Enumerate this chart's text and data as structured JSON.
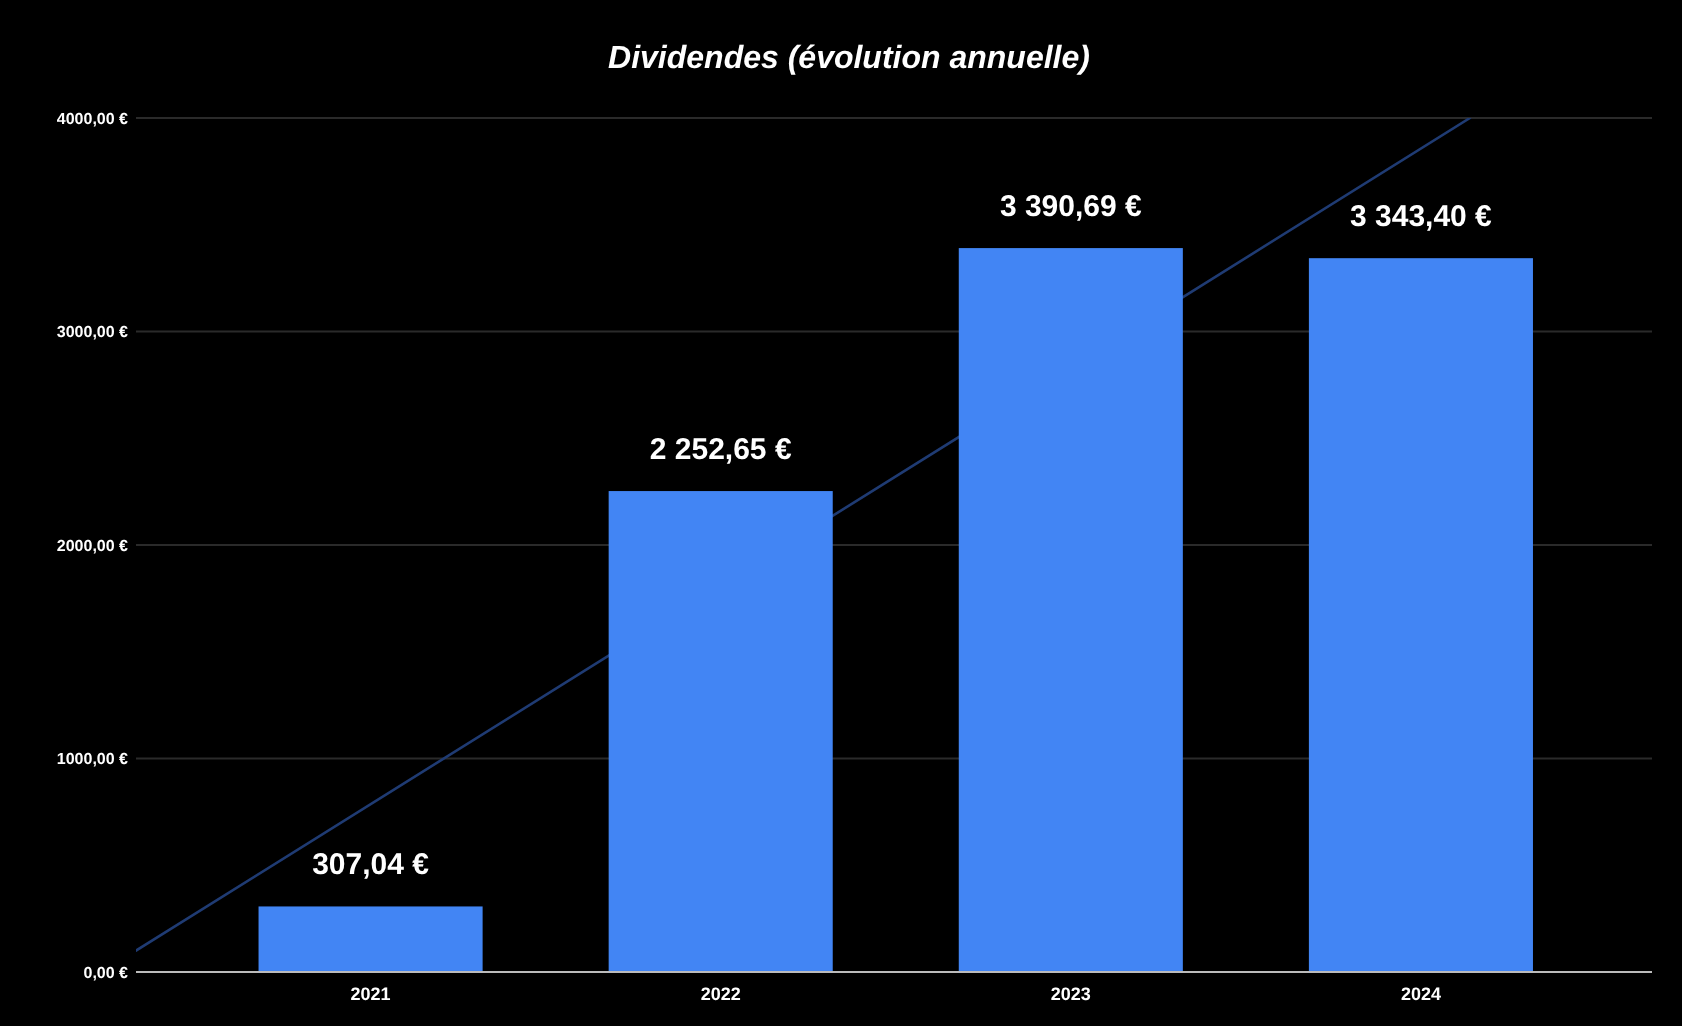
{
  "chart_data": {
    "type": "bar",
    "title": "Dividendes (évolution annuelle)",
    "x": [
      2021,
      2022,
      2023,
      2024
    ],
    "xlim": [
      2020.33,
      2024.66
    ],
    "xticks": [
      2021,
      2022,
      2023,
      2024
    ],
    "ylim": [
      0,
      4000
    ],
    "yticks": [
      {
        "value": 0,
        "label": "0,00 €"
      },
      {
        "value": 1000,
        "label": "1000,00 €"
      },
      {
        "value": 2000,
        "label": "2000,00 €"
      },
      {
        "value": 3000,
        "label": "3000,00 €"
      },
      {
        "value": 4000,
        "label": "4000,00 €"
      }
    ],
    "grid": "y",
    "series": [
      {
        "color": "#4285f4",
        "values": [
          307.04,
          2252.65,
          3390.69,
          3343.4
        ],
        "value_labels": [
          "307,04 €",
          "2 252,65 €",
          "3 390,69 €",
          "3 343,40 €"
        ]
      },
      {
        "type": "line",
        "color": "#1f3b73",
        "x": [
          2020.33,
          2024.14
        ],
        "values": [
          100,
          4000
        ]
      }
    ]
  }
}
